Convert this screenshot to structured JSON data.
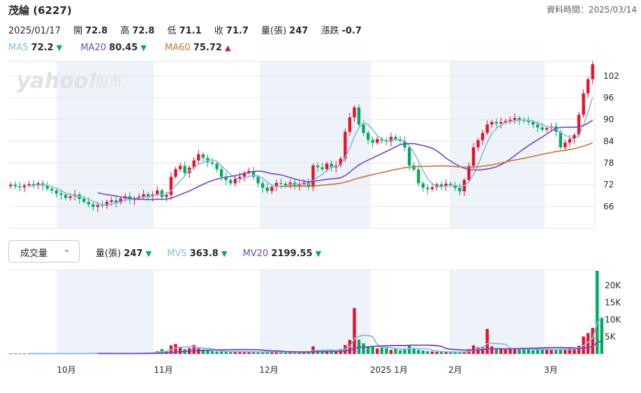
{
  "header": {
    "title": "茂綸 (6227)",
    "as_of_label": "資料時間：2025/03/14"
  },
  "ohlc": {
    "date": "2025/01/17",
    "open_label": "開",
    "open": "72.8",
    "high_label": "高",
    "high": "72.8",
    "low_label": "低",
    "low": "71.1",
    "close_label": "收",
    "close": "71.7",
    "volume_label": "量(張)",
    "volume": "247",
    "change_label": "漲跌",
    "change": "-0.7"
  },
  "ma_legend": {
    "ma5_label": "MA5",
    "ma5": "72.2",
    "ma5_dir": "▼",
    "ma20_label": "MA20",
    "ma20": "80.45",
    "ma20_dir": "▼",
    "ma60_label": "MA60",
    "ma60": "75.72",
    "ma60_dir": "▲"
  },
  "watermark": {
    "brand": "yahoo!",
    "suffix": "股市"
  },
  "volume_panel": {
    "selector": "成交量",
    "vol_label": "量(張)",
    "vol": "247",
    "vol_dir": "▼",
    "mv5_label": "MV5",
    "mv5": "363.8",
    "mv5_dir": "▼",
    "mv20_label": "MV20",
    "mv20": "2199.55",
    "mv20_dir": "▼"
  },
  "colors": {
    "up": "#eb0f29",
    "down": "#00ab5e",
    "ma5": "#80bce8",
    "ma20": "#6e48c9",
    "ma60": "#d2722d",
    "shade": "#eef3f9",
    "grid": "#e2e5e9",
    "axis_text": "#232a31"
  },
  "chart_data": [
    {
      "type": "candlestick",
      "title": "茂綸 (6227)",
      "y_ticks": [
        66,
        72,
        78,
        84,
        90,
        96,
        102
      ],
      "ylim": [
        60,
        106
      ],
      "x_ticks": [
        "10月",
        "11月",
        "12月",
        "2025 1月",
        "2月",
        "3月"
      ],
      "grid": true,
      "closes": [
        72,
        71.6,
        71.3,
        71.8,
        72.2,
        71.9,
        72.4,
        71.7,
        70.9,
        70.4,
        69.6,
        69.2,
        68.4,
        68.8,
        69.3,
        68.1,
        67.3,
        66.6,
        65.9,
        66.4,
        66.2,
        67.3,
        67.7,
        67.1,
        68.2,
        68.8,
        67.8,
        68.3,
        68.7,
        69.4,
        68.8,
        69.3,
        70.4,
        68.6,
        69.2,
        74.2,
        76.3,
        77.2,
        75.2,
        76.7,
        78.7,
        80.4,
        79.4,
        78.2,
        77.8,
        76.3,
        74.2,
        73.3,
        72.4,
        73.6,
        74.2,
        75.3,
        75.8,
        74.2,
        72.4,
        71.2,
        70.3,
        71.4,
        72.5,
        72.3,
        71.8,
        72.6,
        71.7,
        72.3,
        72.6,
        71.4,
        77.3,
        76.8,
        76.3,
        77.8,
        76.7,
        77.3,
        79.2,
        86.6,
        90.6,
        93.3,
        88.6,
        86.3,
        84.4,
        83.6,
        84.6,
        84.2,
        83.9,
        85.2,
        84.6,
        84.1,
        82.3,
        77.3,
        76.2,
        72.4,
        71.2,
        70.8,
        71.3,
        72.1,
        71.6,
        72.3,
        71.9,
        71.1,
        70.2,
        73.3,
        77.2,
        82.3,
        84.3,
        86.3,
        88.6,
        89.3,
        88.9,
        89.3,
        89.6,
        89.9,
        90.4,
        89.8,
        89.6,
        89.3,
        88.6,
        87.8,
        87.2,
        87.6,
        88.1,
        86.6,
        82.3,
        83.6,
        84.6,
        85.7,
        91.3,
        97.2,
        101.1,
        105.2
      ],
      "ma5_note": "drawn from closes",
      "ma20_note": "drawn from closes",
      "ma60_note": "drawn from closes"
    },
    {
      "type": "bar",
      "title": "成交量",
      "y_ticks_labels": [
        "5K",
        "10K",
        "15K",
        "20K"
      ],
      "y_ticks": [
        5000,
        10000,
        15000,
        20000
      ],
      "ylim": [
        0,
        24500
      ],
      "volumes": [
        120,
        150,
        90,
        110,
        130,
        80,
        100,
        90,
        110,
        140,
        120,
        100,
        90,
        80,
        110,
        130,
        150,
        170,
        140,
        160,
        130,
        120,
        110,
        140,
        120,
        110,
        130,
        150,
        170,
        260,
        320,
        380,
        760,
        1400,
        900,
        2500,
        2900,
        2100,
        1400,
        1700,
        2600,
        1600,
        1300,
        900,
        800,
        700,
        650,
        600,
        680,
        800,
        650,
        520,
        500,
        560,
        620,
        700,
        550,
        520,
        480,
        500,
        450,
        420,
        460,
        520,
        700,
        600,
        2200,
        1100,
        800,
        900,
        1000,
        1100,
        1400,
        2600,
        4100,
        13400,
        4200,
        3100,
        2100,
        2400,
        1600,
        1900,
        1700,
        1200,
        1600,
        1100,
        1300,
        2600,
        1600,
        1200,
        1000,
        800,
        700,
        600,
        600,
        500,
        520,
        480,
        460,
        700,
        1400,
        2500,
        1900,
        2100,
        7300,
        2200,
        1500,
        1700,
        1300,
        1500,
        1400,
        1600,
        1700,
        1300,
        1100,
        1200,
        1600,
        1500,
        1200,
        1100,
        1400,
        1300,
        1800,
        1500,
        2400,
        5100,
        6100,
        7600,
        24300,
        10600
      ]
    }
  ]
}
